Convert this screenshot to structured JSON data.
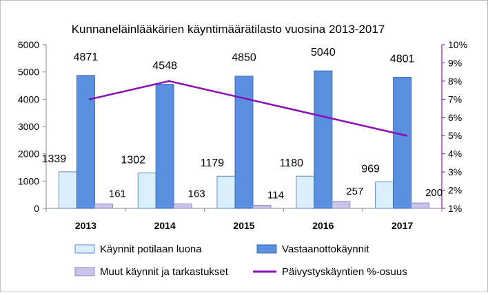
{
  "chart_data": {
    "type": "bar",
    "title": "Kunnaneläinlääkärien käyntimäärätilasto vuosina 2013-2017",
    "categories": [
      "2013",
      "2014",
      "2015",
      "2016",
      "2017"
    ],
    "ylim": [
      0,
      6000
    ],
    "yticks": [
      "0",
      "1000",
      "2000",
      "3000",
      "4000",
      "5000",
      "6000"
    ],
    "y2lim": [
      1,
      10
    ],
    "y2ticks": [
      "1%",
      "2%",
      "3%",
      "4%",
      "5%",
      "6%",
      "7%",
      "8%",
      "9%",
      "10%"
    ],
    "grid": false,
    "legend_position": "bottom",
    "series": [
      {
        "name": "Käynnit potilaan luona",
        "type": "bar",
        "axis": "left",
        "color": "#dbeefb",
        "values": [
          1339,
          1302,
          1179,
          1180,
          969
        ],
        "labels": [
          "1339",
          "1302",
          "1179",
          "1180",
          "969"
        ]
      },
      {
        "name": "Vastaanottokäynnit",
        "type": "bar",
        "axis": "left",
        "color": "#5b8fe0",
        "values": [
          4871,
          4548,
          4850,
          5040,
          4801
        ],
        "labels": [
          "4871",
          "4548",
          "4850",
          "5040",
          "4801"
        ]
      },
      {
        "name": "Muut käynnit ja tarkastukset",
        "type": "bar",
        "axis": "left",
        "color": "#c9c5ea",
        "values": [
          161,
          163,
          114,
          257,
          200
        ],
        "labels": [
          "161",
          "163",
          "114",
          "257",
          "200"
        ]
      },
      {
        "name": "Päivystyskäyntien %-osuus",
        "type": "line",
        "axis": "right",
        "color": "#8a0db5",
        "values": [
          7,
          8,
          7,
          6,
          5
        ]
      }
    ]
  }
}
